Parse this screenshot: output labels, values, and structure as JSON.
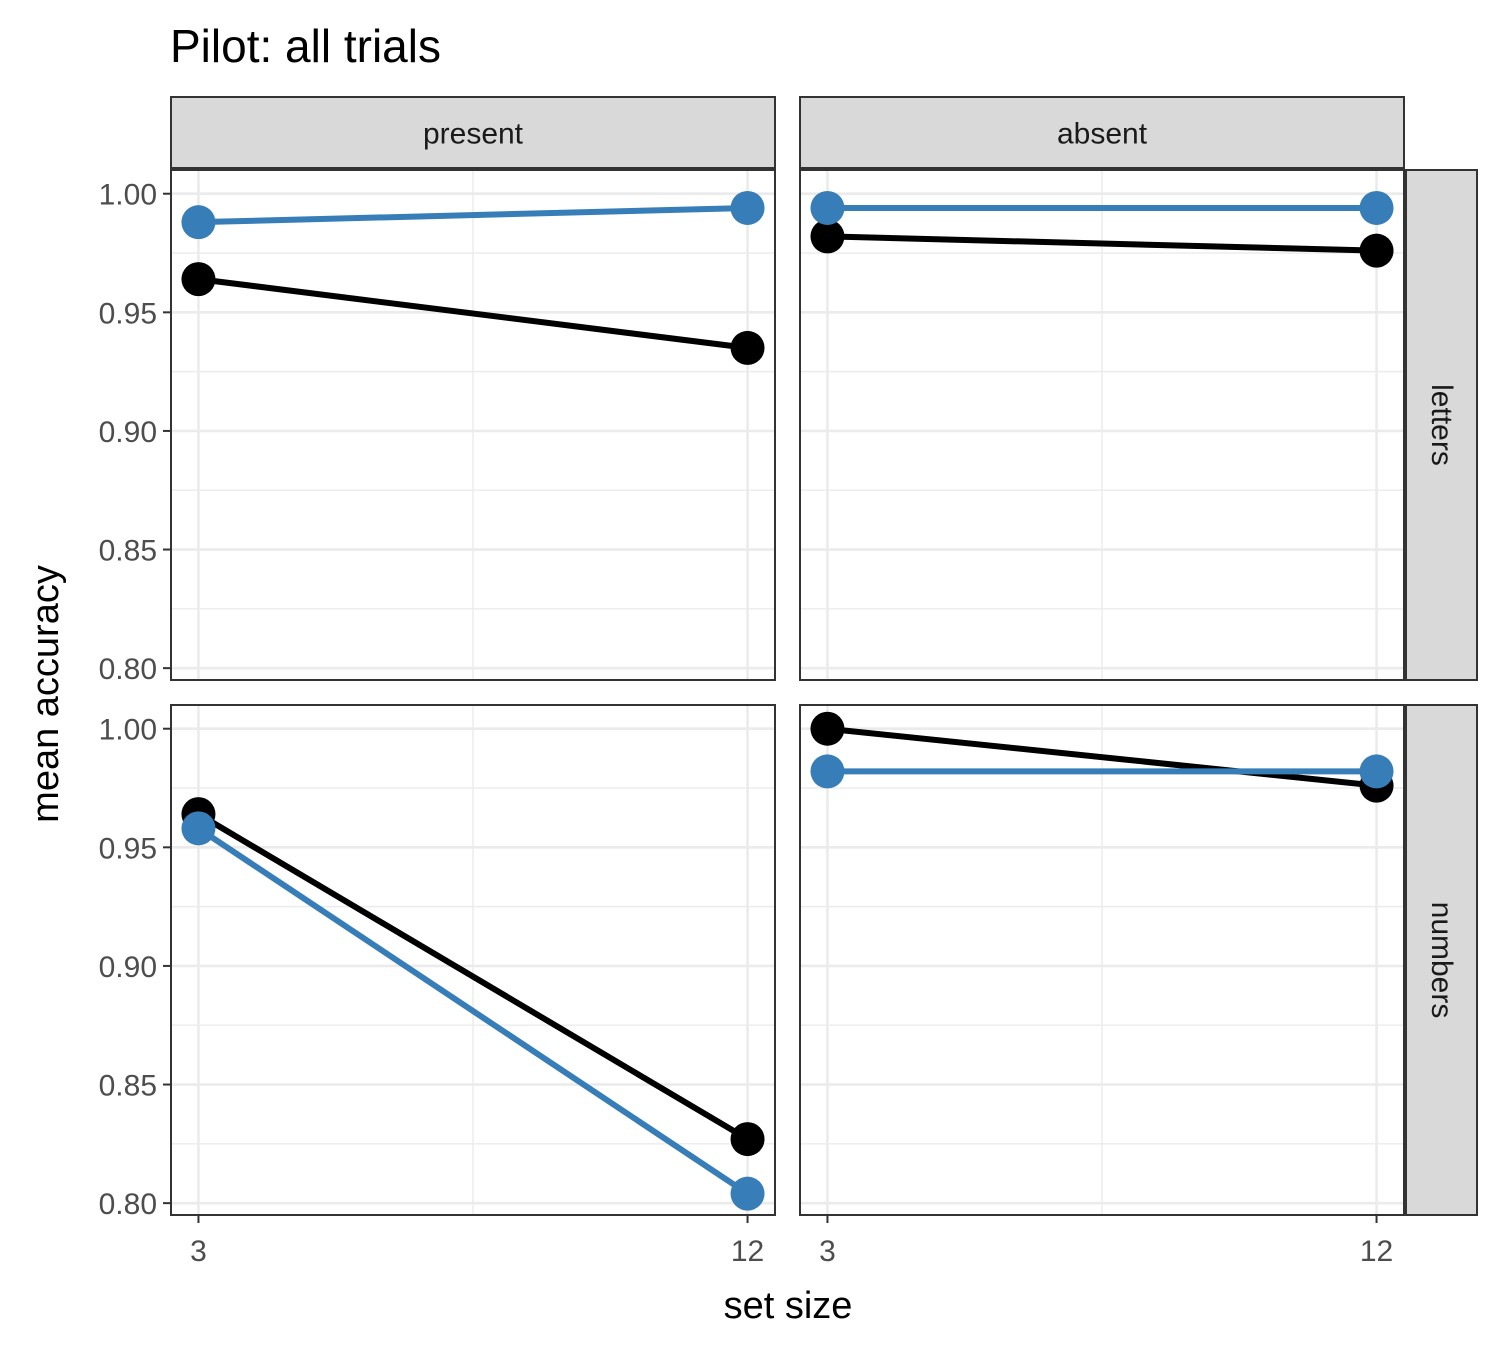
{
  "chart_data": {
    "type": "line",
    "title": "Pilot: all trials",
    "xlabel": "set size",
    "ylabel": "mean accuracy",
    "x_ticks": [
      "3",
      "12"
    ],
    "x_values": [
      3,
      12
    ],
    "ylim": [
      0.795,
      1.01
    ],
    "y_ticks": [
      0.8,
      0.85,
      0.9,
      0.95,
      1.0
    ],
    "y_tick_labels": [
      "0.80",
      "0.85",
      "0.90",
      "0.95",
      "1.00"
    ],
    "grid": true,
    "legend": "none",
    "col_facets": [
      "present",
      "absent"
    ],
    "row_facets": [
      "letters",
      "numbers"
    ],
    "series_colors": [
      "#000000",
      "#377eb8"
    ],
    "panels": [
      {
        "col": "present",
        "row": "letters",
        "series": [
          {
            "color": "#000000",
            "values": [
              0.964,
              0.935
            ]
          },
          {
            "color": "#377eb8",
            "values": [
              0.988,
              0.994
            ]
          }
        ]
      },
      {
        "col": "absent",
        "row": "letters",
        "series": [
          {
            "color": "#000000",
            "values": [
              0.982,
              0.976
            ]
          },
          {
            "color": "#377eb8",
            "values": [
              0.994,
              0.994
            ]
          }
        ]
      },
      {
        "col": "present",
        "row": "numbers",
        "series": [
          {
            "color": "#000000",
            "values": [
              0.964,
              0.827
            ]
          },
          {
            "color": "#377eb8",
            "values": [
              0.958,
              0.804
            ]
          }
        ]
      },
      {
        "col": "absent",
        "row": "numbers",
        "series": [
          {
            "color": "#000000",
            "values": [
              1.0,
              0.976
            ]
          },
          {
            "color": "#377eb8",
            "values": [
              0.982,
              0.982
            ]
          }
        ]
      }
    ]
  }
}
